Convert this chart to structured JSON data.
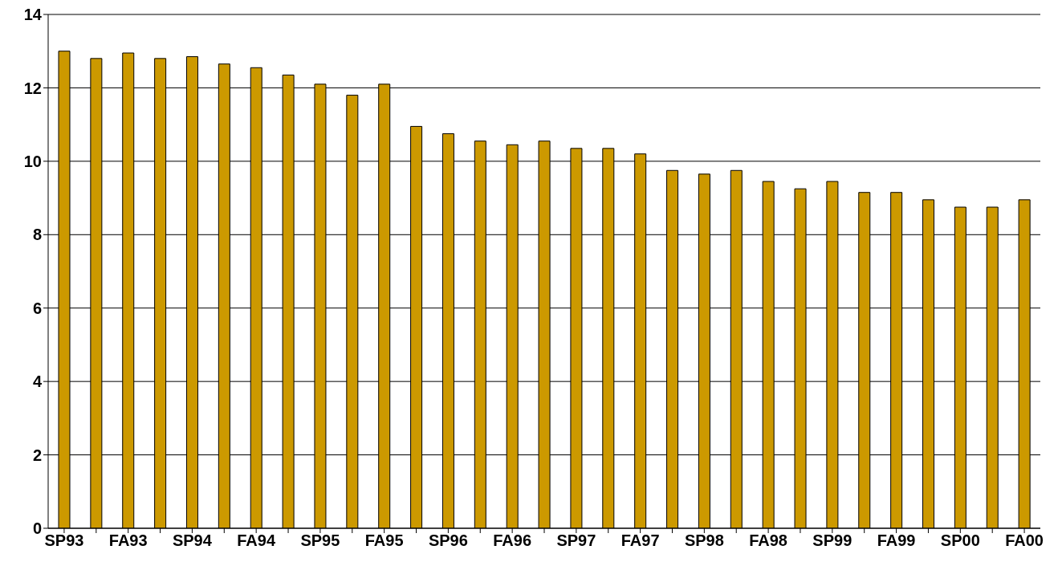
{
  "chart_data": {
    "type": "bar",
    "categories": [
      "SP93",
      null,
      "FA93",
      null,
      "SP94",
      null,
      "FA94",
      null,
      "SP95",
      null,
      "FA95",
      null,
      "SP96",
      null,
      "FA96",
      null,
      "SP97",
      null,
      "FA97",
      null,
      "SP98",
      null,
      "FA98",
      null,
      "SP99",
      null,
      "FA99",
      null,
      "SP00",
      null,
      "FA00"
    ],
    "values": [
      13.0,
      12.8,
      12.95,
      12.8,
      12.85,
      12.65,
      12.55,
      12.35,
      12.1,
      11.8,
      12.1,
      10.95,
      10.75,
      10.55,
      10.45,
      10.55,
      10.35,
      10.35,
      10.2,
      9.75,
      9.65,
      9.75,
      9.45,
      9.25,
      9.45,
      9.15,
      9.15,
      8.95,
      8.75,
      8.75,
      8.95
    ],
    "color": "#cc9900",
    "ylim": [
      0,
      14
    ],
    "yticks": [
      0,
      2,
      4,
      6,
      8,
      10,
      12,
      14
    ],
    "grid": "y"
  }
}
